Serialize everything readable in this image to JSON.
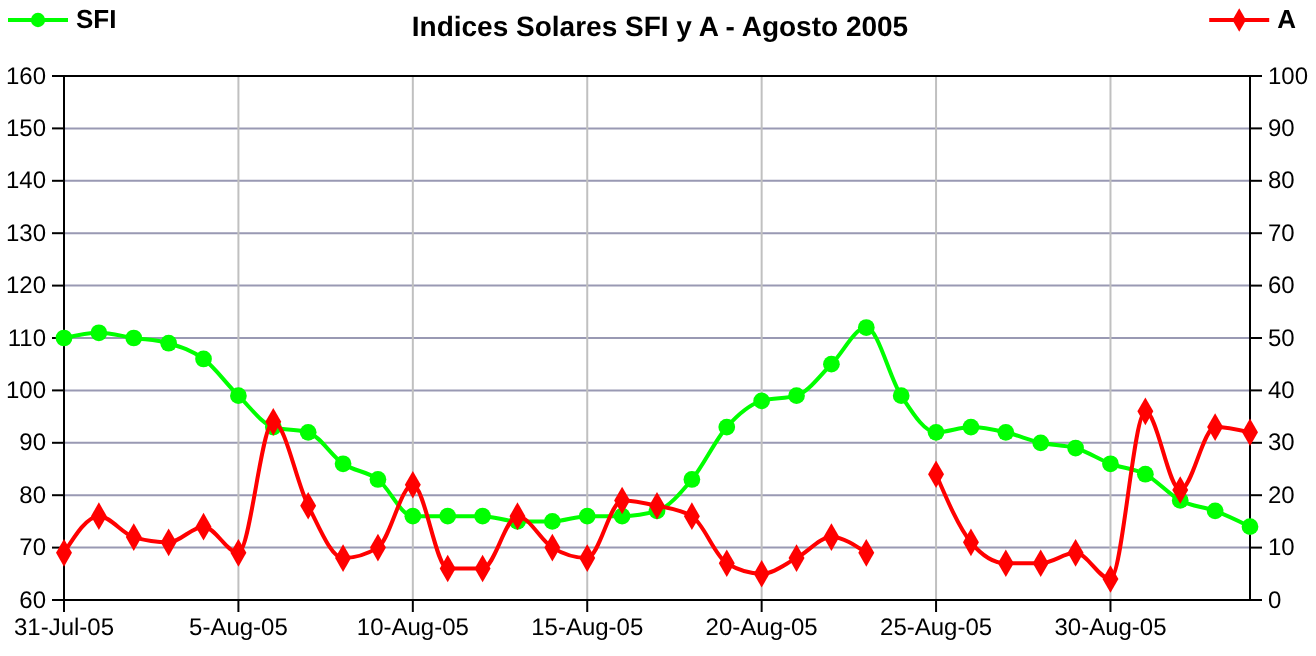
{
  "chart_data": {
    "type": "line",
    "title": "Indices Solares SFI y A - Agosto 2005",
    "x": [
      "2005-07-31",
      "2005-08-01",
      "2005-08-02",
      "2005-08-03",
      "2005-08-04",
      "2005-08-05",
      "2005-08-06",
      "2005-08-07",
      "2005-08-08",
      "2005-08-09",
      "2005-08-10",
      "2005-08-11",
      "2005-08-12",
      "2005-08-13",
      "2005-08-14",
      "2005-08-15",
      "2005-08-16",
      "2005-08-17",
      "2005-08-18",
      "2005-08-19",
      "2005-08-20",
      "2005-08-21",
      "2005-08-22",
      "2005-08-23",
      "2005-08-24",
      "2005-08-25",
      "2005-08-26",
      "2005-08-27",
      "2005-08-28",
      "2005-08-29",
      "2005-08-30",
      "2005-08-31",
      "2005-09-01",
      "2005-09-02",
      "2005-09-03"
    ],
    "series": [
      {
        "name": "SFI",
        "color": "#00ff00",
        "marker": "circle",
        "values": [
          110,
          111,
          110,
          109,
          106,
          99,
          93,
          92,
          86,
          83,
          76,
          76,
          76,
          75,
          75,
          76,
          76,
          77,
          83,
          93,
          98,
          99,
          105,
          112,
          99,
          92,
          93,
          92,
          90,
          89,
          86,
          84,
          79,
          77,
          74
        ]
      },
      {
        "name": "A",
        "color": "#ff0000",
        "marker": "diamond",
        "axis": "y2",
        "values": [
          9,
          16,
          12,
          11,
          14,
          9,
          34,
          18,
          8,
          10,
          22,
          6,
          6,
          16,
          10,
          8,
          19,
          18,
          16,
          7,
          5,
          8,
          12,
          9,
          null,
          24,
          11,
          7,
          7,
          9,
          4,
          36,
          21,
          33,
          32
        ]
      }
    ],
    "xlim": [
      "2005-07-31",
      "2005-09-03"
    ],
    "xticks": [
      {
        "value": "2005-07-31",
        "label": "31-Jul-05"
      },
      {
        "value": "2005-08-05",
        "label": "5-Aug-05"
      },
      {
        "value": "2005-08-10",
        "label": "10-Aug-05"
      },
      {
        "value": "2005-08-15",
        "label": "15-Aug-05"
      },
      {
        "value": "2005-08-20",
        "label": "20-Aug-05"
      },
      {
        "value": "2005-08-25",
        "label": "25-Aug-05"
      },
      {
        "value": "2005-08-30",
        "label": "30-Aug-05"
      }
    ],
    "ylim": [
      60,
      160
    ],
    "yticks": [
      60,
      70,
      80,
      90,
      100,
      110,
      120,
      130,
      140,
      150,
      160
    ],
    "y2lim": [
      0,
      100
    ],
    "y2ticks": [
      0,
      10,
      20,
      30,
      40,
      50,
      60,
      70,
      80,
      90,
      100
    ],
    "grid": true,
    "legend": "top"
  }
}
